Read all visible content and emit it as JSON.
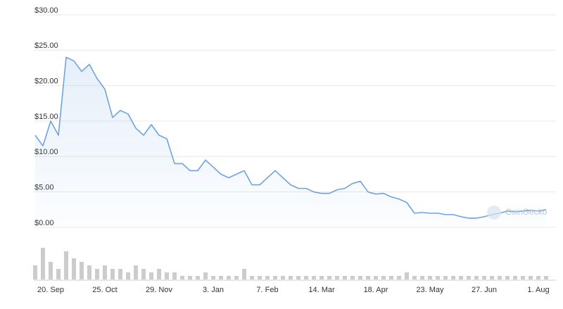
{
  "chart_data": {
    "type": "line",
    "watermark": "CoinGecko",
    "categories": [
      null,
      null,
      "20. Sep",
      null,
      null,
      null,
      null,
      null,
      null,
      "25. Oct",
      null,
      null,
      null,
      null,
      null,
      null,
      "29. Nov",
      null,
      null,
      null,
      null,
      null,
      null,
      "3. Jan",
      null,
      null,
      null,
      null,
      null,
      null,
      "7. Feb",
      null,
      null,
      null,
      null,
      null,
      null,
      "14. Mar",
      null,
      null,
      null,
      null,
      null,
      null,
      "18. Apr",
      null,
      null,
      null,
      null,
      null,
      null,
      "23. May",
      null,
      null,
      null,
      null,
      null,
      null,
      "27. Jun",
      null,
      null,
      null,
      null,
      null,
      null,
      "1. Aug",
      null
    ],
    "series": [
      {
        "name": "Price",
        "color": "#6fa3e0",
        "values": [
          13,
          11.5,
          15,
          13,
          24,
          23.5,
          22,
          23,
          21,
          19.5,
          15.5,
          16.5,
          16,
          14,
          13,
          14.5,
          13,
          12.5,
          9,
          9,
          8,
          8,
          9.5,
          8.5,
          7.5,
          7,
          7.5,
          8,
          6,
          6,
          7,
          8,
          7,
          6,
          5.5,
          5.5,
          5,
          4.8,
          4.8,
          5.3,
          5.5,
          6.2,
          6.5,
          5,
          4.7,
          4.8,
          4.3,
          4,
          3.5,
          2,
          2.1,
          2,
          2,
          1.8,
          1.8,
          1.5,
          1.3,
          1.3,
          1.5,
          1.8,
          2,
          2.3,
          2.2,
          2.3,
          2.4,
          2.3,
          2.5
        ]
      },
      {
        "name": "Volume",
        "color": "#cccccc",
        "axis": "y2",
        "values": [
          4,
          9,
          5,
          3,
          8,
          6,
          5,
          4,
          3,
          4,
          3,
          3,
          2,
          4,
          3,
          2,
          3,
          2,
          2,
          1,
          1,
          1,
          2,
          1,
          1,
          1,
          1,
          3,
          1,
          1,
          1,
          1,
          1,
          1,
          1,
          1,
          1,
          1,
          1,
          1,
          1,
          1,
          1,
          1,
          1,
          1,
          1,
          1,
          2,
          1,
          1,
          1,
          1,
          1,
          1,
          1,
          1,
          1,
          1,
          1,
          1,
          1,
          1,
          1,
          1,
          1,
          1
        ]
      }
    ],
    "ylim": [
      0,
      30
    ],
    "yticks": [
      {
        "value": 0,
        "label": "$0.00"
      },
      {
        "value": 5,
        "label": "$5.00"
      },
      {
        "value": 10,
        "label": "$10.00"
      },
      {
        "value": 15,
        "label": "$15.00"
      },
      {
        "value": 20,
        "label": "$20.00"
      },
      {
        "value": 25,
        "label": "$25.00"
      },
      {
        "value": 30,
        "label": "$30.00"
      }
    ],
    "y2lim": [
      0,
      10
    ],
    "grid": true
  }
}
